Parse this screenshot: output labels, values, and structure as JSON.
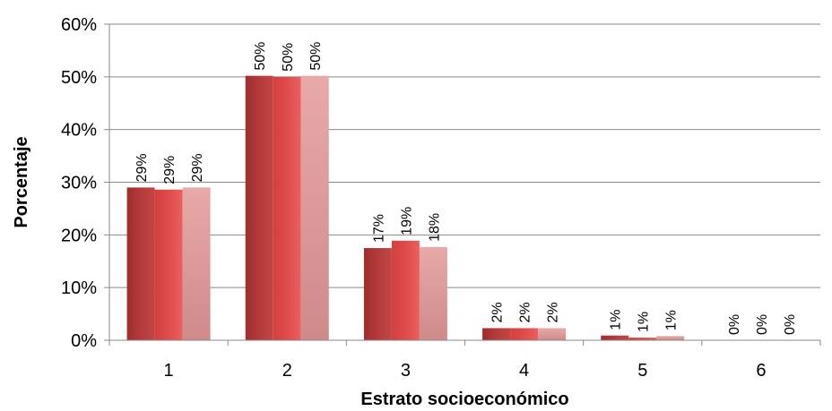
{
  "chart_data": {
    "type": "bar",
    "xlabel": "Estrato socioeconómico",
    "ylabel": "Porcentaje",
    "categories": [
      "1",
      "2",
      "3",
      "4",
      "5",
      "6"
    ],
    "series": [
      {
        "values": [
          0.29,
          0.502,
          0.175,
          0.023,
          0.009,
          0.0
        ],
        "labels": [
          "29%",
          "50%",
          "17%",
          "2%",
          "1%",
          "0%"
        ]
      },
      {
        "values": [
          0.286,
          0.5,
          0.189,
          0.023,
          0.005,
          0.0
        ],
        "labels": [
          "29%",
          "50%",
          "19%",
          "2%",
          "1%",
          "0%"
        ]
      },
      {
        "values": [
          0.29,
          0.502,
          0.177,
          0.023,
          0.008,
          0.0
        ],
        "labels": [
          "29%",
          "50%",
          "18%",
          "2%",
          "1%",
          "0%"
        ]
      }
    ],
    "yticks": [
      "0%",
      "10%",
      "20%",
      "30%",
      "40%",
      "50%",
      "60%"
    ],
    "ylim": [
      0,
      0.6
    ],
    "grid": true,
    "colors": [
      "#b53a3a",
      "#df4b4b",
      "#e2a0a0"
    ]
  }
}
